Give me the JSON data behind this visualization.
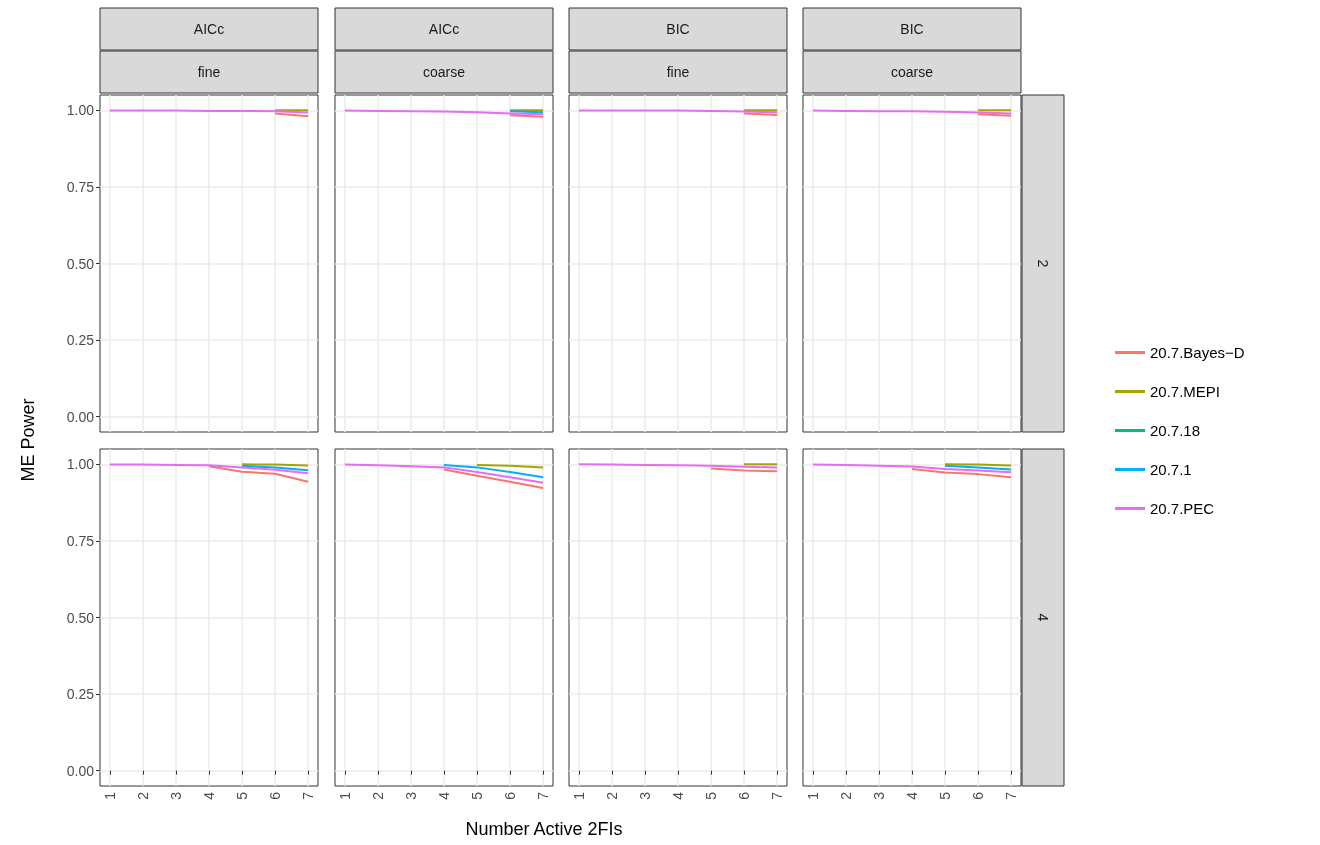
{
  "chart_data": [
    {
      "type": "line",
      "title": "AICc",
      "subtitle": "fine",
      "ylabel": "ME Power",
      "x": [
        1,
        2,
        3,
        4,
        5,
        6,
        7
      ],
      "xlim": [
        0.7,
        7.3
      ],
      "xticks": [
        {
          "value": 1,
          "label": null
        },
        {
          "value": 2,
          "label": null
        },
        {
          "value": 3,
          "label": null
        },
        {
          "value": 4,
          "label": null
        },
        {
          "value": 5,
          "label": null
        },
        {
          "value": 6,
          "label": null
        },
        {
          "value": 7,
          "label": null
        }
      ],
      "ylim": [
        -0.05,
        1.05
      ],
      "yticks": [
        {
          "value": 0,
          "label": "0.00"
        },
        {
          "value": 0.25,
          "label": "0.25"
        },
        {
          "value": 0.5,
          "label": "0.50"
        },
        {
          "value": 0.75,
          "label": "0.75"
        },
        {
          "value": 1,
          "label": "1.00"
        }
      ],
      "grid": true,
      "tick_labels": "y",
      "series": [
        {
          "color": "#f8766d",
          "values": [
            null,
            null,
            null,
            null,
            null,
            0.99,
            0.981
          ]
        },
        {
          "color": "#a3a500",
          "values": [
            null,
            null,
            null,
            null,
            null,
            1,
            1
          ]
        },
        {
          "color": "#00bf7d",
          "values": [
            null,
            null,
            null,
            null,
            null,
            null,
            null
          ]
        },
        {
          "color": "#00b0f6",
          "values": [
            null,
            null,
            null,
            null,
            null,
            null,
            null
          ]
        },
        {
          "color": "#e76bf3",
          "values": [
            0.999,
            0.999,
            0.999,
            0.998,
            0.998,
            0.997,
            0.993
          ]
        }
      ]
    },
    {
      "type": "line",
      "title": "AICc",
      "subtitle": "coarse",
      "x": [
        1,
        2,
        3,
        4,
        5,
        6,
        7
      ],
      "xlim": [
        0.7,
        7.3
      ],
      "xticks": [
        {
          "value": 1,
          "label": null
        },
        {
          "value": 2,
          "label": null
        },
        {
          "value": 3,
          "label": null
        },
        {
          "value": 4,
          "label": null
        },
        {
          "value": 5,
          "label": null
        },
        {
          "value": 6,
          "label": null
        },
        {
          "value": 7,
          "label": null
        }
      ],
      "ylim": [
        -0.05,
        1.05
      ],
      "yticks": [
        {
          "value": 0,
          "label": null
        },
        {
          "value": 0.25,
          "label": null
        },
        {
          "value": 0.5,
          "label": null
        },
        {
          "value": 0.75,
          "label": null
        },
        {
          "value": 1,
          "label": null
        }
      ],
      "grid": true,
      "tick_labels": false,
      "series": [
        {
          "color": "#f8766d",
          "values": [
            null,
            null,
            null,
            null,
            null,
            0.984,
            0.979
          ]
        },
        {
          "color": "#a3a500",
          "values": [
            null,
            null,
            null,
            null,
            null,
            1,
            1
          ]
        },
        {
          "color": "#00bf7d",
          "values": [
            null,
            null,
            null,
            null,
            null,
            null,
            null
          ]
        },
        {
          "color": "#00b0f6",
          "values": [
            null,
            null,
            null,
            null,
            null,
            0.997,
            0.994
          ]
        },
        {
          "color": "#e76bf3",
          "values": [
            0.999,
            0.998,
            0.997,
            0.996,
            0.994,
            0.99,
            0.987
          ]
        }
      ]
    },
    {
      "type": "line",
      "title": "BIC",
      "subtitle": "fine",
      "x": [
        1,
        2,
        3,
        4,
        5,
        6,
        7
      ],
      "xlim": [
        0.7,
        7.3
      ],
      "xticks": [
        {
          "value": 1,
          "label": null
        },
        {
          "value": 2,
          "label": null
        },
        {
          "value": 3,
          "label": null
        },
        {
          "value": 4,
          "label": null
        },
        {
          "value": 5,
          "label": null
        },
        {
          "value": 6,
          "label": null
        },
        {
          "value": 7,
          "label": null
        }
      ],
      "ylim": [
        -0.05,
        1.05
      ],
      "yticks": [
        {
          "value": 0,
          "label": null
        },
        {
          "value": 0.25,
          "label": null
        },
        {
          "value": 0.5,
          "label": null
        },
        {
          "value": 0.75,
          "label": null
        },
        {
          "value": 1,
          "label": null
        }
      ],
      "grid": true,
      "tick_labels": false,
      "series": [
        {
          "color": "#f8766d",
          "values": [
            null,
            null,
            null,
            null,
            null,
            0.99,
            0.985
          ]
        },
        {
          "color": "#a3a500",
          "values": [
            null,
            null,
            null,
            null,
            null,
            1,
            1
          ]
        },
        {
          "color": "#00bf7d",
          "values": [
            null,
            null,
            null,
            null,
            null,
            null,
            null
          ]
        },
        {
          "color": "#00b0f6",
          "values": [
            null,
            null,
            null,
            null,
            null,
            null,
            null
          ]
        },
        {
          "color": "#e76bf3",
          "values": [
            0.999,
            0.999,
            0.999,
            0.999,
            0.998,
            0.996,
            0.994
          ]
        }
      ]
    },
    {
      "type": "line",
      "title": "BIC",
      "subtitle": "coarse",
      "annotations": [
        "2"
      ],
      "legend": "right",
      "x": [
        1,
        2,
        3,
        4,
        5,
        6,
        7
      ],
      "xlim": [
        0.7,
        7.3
      ],
      "xticks": [
        {
          "value": 1,
          "label": null
        },
        {
          "value": 2,
          "label": null
        },
        {
          "value": 3,
          "label": null
        },
        {
          "value": 4,
          "label": null
        },
        {
          "value": 5,
          "label": null
        },
        {
          "value": 6,
          "label": null
        },
        {
          "value": 7,
          "label": null
        }
      ],
      "ylim": [
        -0.05,
        1.05
      ],
      "yticks": [
        {
          "value": 0,
          "label": null
        },
        {
          "value": 0.25,
          "label": null
        },
        {
          "value": 0.5,
          "label": null
        },
        {
          "value": 0.75,
          "label": null
        },
        {
          "value": 1,
          "label": null
        }
      ],
      "grid": true,
      "tick_labels": false,
      "series": [
        {
          "name": "20.7.Bayes−D",
          "color": "#f8766d",
          "values": [
            null,
            null,
            null,
            null,
            null,
            0.987,
            0.982
          ]
        },
        {
          "name": "20.7.MEPI",
          "color": "#a3a500",
          "values": [
            null,
            null,
            null,
            null,
            null,
            1,
            1
          ]
        },
        {
          "name": "20.7.18",
          "color": "#00bf7d",
          "values": [
            null,
            null,
            null,
            null,
            null,
            null,
            null
          ]
        },
        {
          "name": "20.7.1",
          "color": "#00b0f6",
          "values": [
            null,
            null,
            null,
            null,
            null,
            null,
            null
          ]
        },
        {
          "name": "20.7.PEC",
          "color": "#e76bf3",
          "values": [
            0.999,
            0.998,
            0.997,
            0.997,
            0.995,
            0.993,
            0.99
          ]
        }
      ]
    },
    {
      "type": "line",
      "x": [
        1,
        2,
        3,
        4,
        5,
        6,
        7
      ],
      "xlim": [
        0.7,
        7.3
      ],
      "xticks": [
        1,
        2,
        3,
        4,
        5,
        6,
        7
      ],
      "ylim": [
        -0.05,
        1.05
      ],
      "yticks": [
        {
          "value": 0,
          "label": "0.00"
        },
        {
          "value": 0.25,
          "label": "0.25"
        },
        {
          "value": 0.5,
          "label": "0.50"
        },
        {
          "value": 0.75,
          "label": "0.75"
        },
        {
          "value": 1,
          "label": "1.00"
        }
      ],
      "grid": true,
      "series": [
        {
          "color": "#f8766d",
          "values": [
            null,
            null,
            null,
            0.994,
            0.976,
            0.969,
            0.943
          ]
        },
        {
          "color": "#a3a500",
          "values": [
            null,
            null,
            null,
            null,
            1,
            0.999,
            0.996
          ]
        },
        {
          "color": "#00bf7d",
          "values": [
            null,
            null,
            null,
            null,
            null,
            null,
            null
          ]
        },
        {
          "color": "#00b0f6",
          "values": [
            null,
            null,
            null,
            null,
            0.995,
            0.99,
            0.981
          ]
        },
        {
          "color": "#e76bf3",
          "values": [
            0.999,
            0.999,
            0.998,
            0.997,
            0.99,
            0.982,
            0.971
          ]
        }
      ]
    },
    {
      "type": "line",
      "xlabel": "Number Active 2FIs",
      "x": [
        1,
        2,
        3,
        4,
        5,
        6,
        7
      ],
      "xlim": [
        0.7,
        7.3
      ],
      "xticks": [
        1,
        2,
        3,
        4,
        5,
        6,
        7
      ],
      "ylim": [
        -0.05,
        1.05
      ],
      "yticks": [
        {
          "value": 0,
          "label": null
        },
        {
          "value": 0.25,
          "label": null
        },
        {
          "value": 0.5,
          "label": null
        },
        {
          "value": 0.75,
          "label": null
        },
        {
          "value": 1,
          "label": null
        }
      ],
      "grid": true,
      "tick_labels": "x",
      "series": [
        {
          "color": "#f8766d",
          "values": [
            null,
            null,
            null,
            0.983,
            0.963,
            0.943,
            0.923
          ]
        },
        {
          "color": "#a3a500",
          "values": [
            null,
            null,
            null,
            null,
            0.998,
            0.995,
            0.99
          ]
        },
        {
          "color": "#00bf7d",
          "values": [
            null,
            null,
            null,
            null,
            null,
            null,
            null
          ]
        },
        {
          "color": "#00b0f6",
          "values": [
            null,
            null,
            null,
            0.998,
            0.99,
            0.975,
            0.958
          ]
        },
        {
          "color": "#e76bf3",
          "values": [
            0.999,
            0.997,
            0.994,
            0.99,
            0.975,
            0.958,
            0.94
          ]
        }
      ]
    },
    {
      "type": "line",
      "x": [
        1,
        2,
        3,
        4,
        5,
        6,
        7
      ],
      "xlim": [
        0.7,
        7.3
      ],
      "xticks": [
        1,
        2,
        3,
        4,
        5,
        6,
        7
      ],
      "ylim": [
        -0.05,
        1.05
      ],
      "yticks": [
        {
          "value": 0,
          "label": null
        },
        {
          "value": 0.25,
          "label": null
        },
        {
          "value": 0.5,
          "label": null
        },
        {
          "value": 0.75,
          "label": null
        },
        {
          "value": 1,
          "label": null
        }
      ],
      "grid": true,
      "tick_labels": "x",
      "series": [
        {
          "color": "#f8766d",
          "values": [
            null,
            null,
            null,
            null,
            0.986,
            0.98,
            0.977
          ]
        },
        {
          "color": "#a3a500",
          "values": [
            null,
            null,
            null,
            null,
            null,
            1,
            1
          ]
        },
        {
          "color": "#00bf7d",
          "values": [
            null,
            null,
            null,
            null,
            null,
            null,
            null
          ]
        },
        {
          "color": "#00b0f6",
          "values": [
            null,
            null,
            null,
            null,
            null,
            null,
            null
          ]
        },
        {
          "color": "#e76bf3",
          "values": [
            1,
            0.999,
            0.998,
            0.997,
            0.995,
            0.992,
            0.99
          ]
        }
      ]
    },
    {
      "type": "line",
      "annotations": [
        "4"
      ],
      "x": [
        1,
        2,
        3,
        4,
        5,
        6,
        7
      ],
      "xlim": [
        0.7,
        7.3
      ],
      "xticks": [
        1,
        2,
        3,
        4,
        5,
        6,
        7
      ],
      "ylim": [
        -0.05,
        1.05
      ],
      "yticks": [
        {
          "value": 0,
          "label": null
        },
        {
          "value": 0.25,
          "label": null
        },
        {
          "value": 0.5,
          "label": null
        },
        {
          "value": 0.75,
          "label": null
        },
        {
          "value": 1,
          "label": null
        }
      ],
      "grid": true,
      "tick_labels": "x",
      "series": [
        {
          "color": "#f8766d",
          "values": [
            null,
            null,
            null,
            0.985,
            0.973,
            0.968,
            0.958
          ]
        },
        {
          "color": "#a3a500",
          "values": [
            null,
            null,
            null,
            null,
            1,
            0.999,
            0.996
          ]
        },
        {
          "color": "#00bf7d",
          "values": [
            null,
            null,
            null,
            null,
            null,
            null,
            null
          ]
        },
        {
          "color": "#00b0f6",
          "values": [
            null,
            null,
            null,
            null,
            0.995,
            0.99,
            0.983
          ]
        },
        {
          "color": "#e76bf3",
          "values": [
            0.999,
            0.998,
            0.995,
            0.993,
            0.985,
            0.98,
            0.974
          ]
        }
      ]
    }
  ]
}
